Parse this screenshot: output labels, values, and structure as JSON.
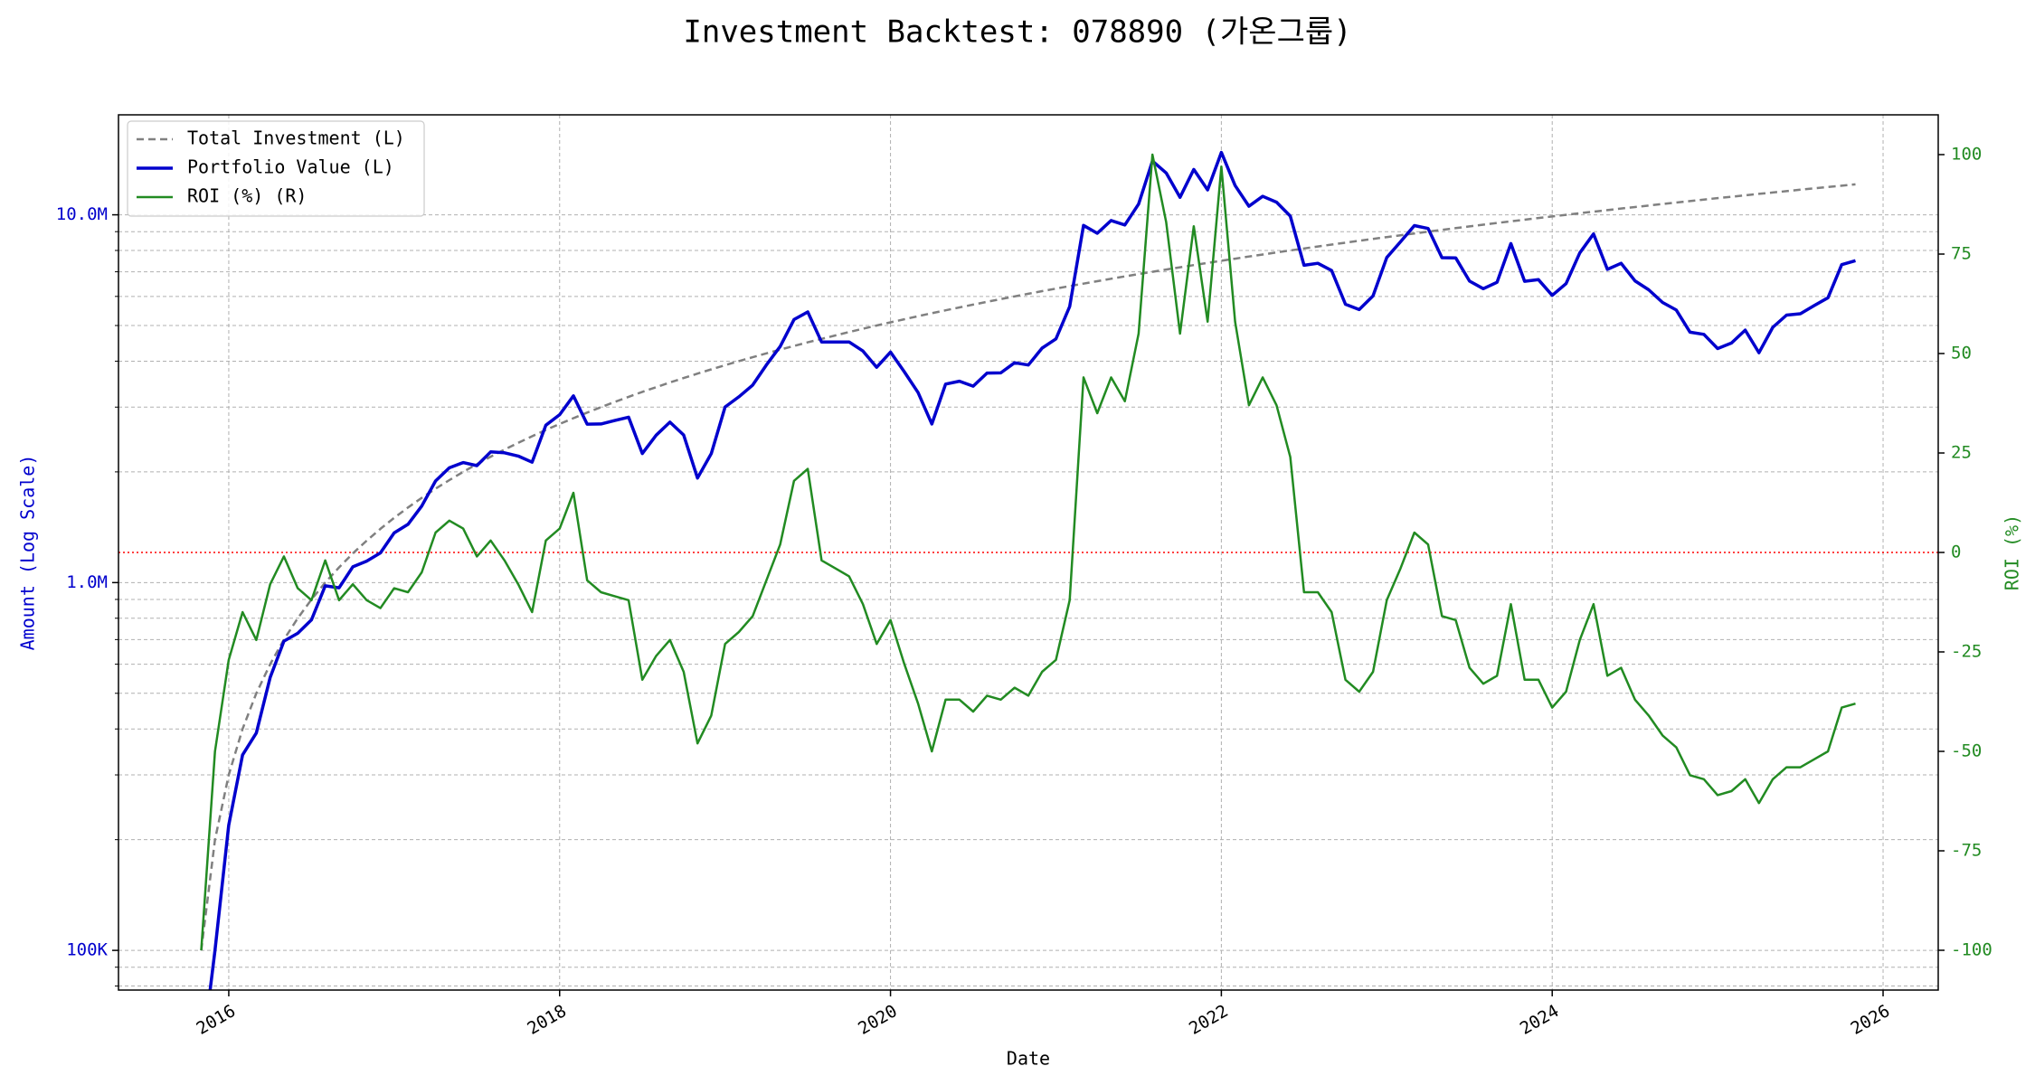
{
  "chart_data": {
    "type": "line",
    "title": "Investment Backtest: 078890 (가온그룹)",
    "xlabel": "Date",
    "ylabel": "Amount (Log Scale)",
    "y2label": "ROI (%)",
    "log_y": true,
    "grid": true,
    "legend": "upper left",
    "ylabel_color": "#0000cd",
    "y2label_color": "#228b22",
    "zero_line": {
      "axis": "y2",
      "value": 0,
      "color": "#ff0000"
    },
    "xlim": [
      "2015-05",
      "2026-05"
    ],
    "xticks": [
      {
        "value": "2016-01",
        "label": "2016"
      },
      {
        "value": "2018-01",
        "label": "2018"
      },
      {
        "value": "2020-01",
        "label": "2020"
      },
      {
        "value": "2022-01",
        "label": "2022"
      },
      {
        "value": "2024-01",
        "label": "2024"
      },
      {
        "value": "2026-01",
        "label": "2026"
      }
    ],
    "ylim": [
      78000,
      18700000
    ],
    "yticks": [
      {
        "value": 100000,
        "label": "100K"
      },
      {
        "value": 1000000,
        "label": "1.0M"
      },
      {
        "value": 10000000,
        "label": "10.0M"
      }
    ],
    "yminorticks": [
      80000,
      90000,
      200000,
      300000,
      400000,
      500000,
      600000,
      700000,
      800000,
      900000,
      2000000,
      3000000,
      4000000,
      5000000,
      6000000,
      7000000,
      8000000,
      9000000
    ],
    "y2lim": [
      -110,
      110
    ],
    "y2ticks": [
      -100,
      -75,
      -50,
      -25,
      0,
      25,
      50,
      75,
      100
    ],
    "x": [
      "2015-11",
      "2015-12",
      "2016-01",
      "2016-02",
      "2016-03",
      "2016-04",
      "2016-05",
      "2016-06",
      "2016-07",
      "2016-08",
      "2016-09",
      "2016-10",
      "2016-11",
      "2016-12",
      "2017-01",
      "2017-02",
      "2017-03",
      "2017-04",
      "2017-05",
      "2017-06",
      "2017-07",
      "2017-08",
      "2017-09",
      "2017-10",
      "2017-11",
      "2017-12",
      "2018-01",
      "2018-02",
      "2018-03",
      "2018-04",
      "2018-05",
      "2018-06",
      "2018-07",
      "2018-08",
      "2018-09",
      "2018-10",
      "2018-11",
      "2018-12",
      "2019-01",
      "2019-02",
      "2019-03",
      "2019-04",
      "2019-05",
      "2019-06",
      "2019-07",
      "2019-08",
      "2019-09",
      "2019-10",
      "2019-11",
      "2019-12",
      "2020-01",
      "2020-02",
      "2020-03",
      "2020-04",
      "2020-05",
      "2020-06",
      "2020-07",
      "2020-08",
      "2020-09",
      "2020-10",
      "2020-11",
      "2020-12",
      "2021-01",
      "2021-02",
      "2021-03",
      "2021-04",
      "2021-05",
      "2021-06",
      "2021-07",
      "2021-08",
      "2021-09",
      "2021-10",
      "2021-11",
      "2021-12",
      "2022-01",
      "2022-02",
      "2022-03",
      "2022-04",
      "2022-05",
      "2022-06",
      "2022-07",
      "2022-08",
      "2022-09",
      "2022-10",
      "2022-11",
      "2022-12",
      "2023-01",
      "2023-02",
      "2023-03",
      "2023-04",
      "2023-05",
      "2023-06",
      "2023-07",
      "2023-08",
      "2023-09",
      "2023-10",
      "2023-11",
      "2023-12",
      "2024-01",
      "2024-02",
      "2024-03",
      "2024-04",
      "2024-05",
      "2024-06",
      "2024-07",
      "2024-08",
      "2024-09",
      "2024-10",
      "2024-11",
      "2024-12",
      "2025-01",
      "2025-02",
      "2025-03",
      "2025-04",
      "2025-05",
      "2025-06",
      "2025-07",
      "2025-08",
      "2025-09",
      "2025-10",
      "2025-11"
    ],
    "series": [
      {
        "name": "Total Investment (L)",
        "color": "#808080",
        "style": "dashed",
        "width": 2.5,
        "axis": "y",
        "values": [
          100000,
          200000,
          300000,
          400000,
          500000,
          600000,
          700000,
          800000,
          900000,
          1000000,
          1100000,
          1200000,
          1300000,
          1400000,
          1500000,
          1600000,
          1700000,
          1800000,
          1900000,
          2000000,
          2100000,
          2200000,
          2300000,
          2400000,
          2500000,
          2600000,
          2700000,
          2800000,
          2900000,
          3000000,
          3100000,
          3200000,
          3300000,
          3400000,
          3500000,
          3600000,
          3700000,
          3800000,
          3900000,
          4000000,
          4100000,
          4200000,
          4300000,
          4400000,
          4500000,
          4600000,
          4700000,
          4800000,
          4900000,
          5000000,
          5100000,
          5200000,
          5300000,
          5400000,
          5500000,
          5600000,
          5700000,
          5800000,
          5900000,
          6000000,
          6100000,
          6200000,
          6300000,
          6400000,
          6500000,
          6600000,
          6700000,
          6800000,
          6900000,
          7000000,
          7100000,
          7200000,
          7300000,
          7400000,
          7500000,
          7600000,
          7700000,
          7800000,
          7900000,
          8000000,
          8100000,
          8200000,
          8300000,
          8400000,
          8500000,
          8600000,
          8700000,
          8800000,
          8900000,
          9000000,
          9100000,
          9200000,
          9300000,
          9400000,
          9500000,
          9600000,
          9700000,
          9800000,
          9900000,
          10000000,
          10100000,
          10200000,
          10300000,
          10400000,
          10500000,
          10600000,
          10700000,
          10800000,
          10900000,
          11000000,
          11100000,
          11200000,
          11300000,
          11400000,
          11500000,
          11600000,
          11700000,
          11800000,
          11900000,
          12000000,
          12100000
        ]
      },
      {
        "name": "Portfolio Value (L)",
        "color": "#0000cd",
        "style": "solid",
        "width": 3.5,
        "axis": "y",
        "values": [
          0,
          100000,
          219000,
          340000,
          390000,
          552000,
          693000,
          728000,
          792000,
          980000,
          968000,
          1104000,
          1144000,
          1204000,
          1365000,
          1440000,
          1615000,
          1890000,
          2052000,
          2120000,
          2079000,
          2266000,
          2254000,
          2208000,
          2125000,
          2678000,
          2862000,
          3220000,
          2697000,
          2700000,
          2759000,
          2816000,
          2244000,
          2516000,
          2730000,
          2520000,
          1924000,
          2242000,
          3003000,
          3200000,
          3444000,
          3906000,
          4386000,
          5192000,
          5445000,
          4508000,
          4512000,
          4512000,
          4263000,
          3850000,
          4233000,
          3744000,
          3286000,
          2700000,
          3465000,
          3528000,
          3420000,
          3712000,
          3717000,
          3960000,
          3904000,
          4340000,
          4599000,
          5632000,
          9360000,
          8910000,
          9648000,
          9384000,
          10695000,
          14000000,
          12993000,
          11160000,
          13286000,
          11692000,
          14775000,
          12008000,
          10549000,
          11232000,
          10823000,
          9920000,
          7290000,
          7380000,
          7055000,
          5712000,
          5525000,
          6020000,
          7656000,
          8448000,
          9345000,
          9180000,
          7644000,
          7636000,
          6603000,
          6298000,
          6555000,
          8352000,
          6596000,
          6664000,
          6039000,
          6500000,
          7878000,
          8874000,
          7107000,
          7384000,
          6615000,
          6254000,
          5778000,
          5508000,
          4796000,
          4730000,
          4329000,
          4480000,
          4859000,
          4218000,
          4945000,
          5336000,
          5382000,
          5664000,
          5950000,
          7320000,
          7502000
        ]
      },
      {
        "name": "ROI (%) (R)",
        "color": "#228b22",
        "style": "solid",
        "width": 2.5,
        "axis": "y2",
        "values": [
          -100,
          -50,
          -27,
          -15,
          -22,
          -8,
          -1,
          -9,
          -12,
          -2,
          -12,
          -8,
          -12,
          -14,
          -9,
          -10,
          -5,
          5,
          8,
          6,
          -1,
          3,
          -2,
          -8,
          -15,
          3,
          6,
          15,
          -7,
          -10,
          -11,
          -12,
          -32,
          -26,
          -22,
          -30,
          -48,
          -41,
          -23,
          -20,
          -16,
          -7,
          2,
          18,
          21,
          -2,
          -4,
          -6,
          -13,
          -23,
          -17,
          -28,
          -38,
          -50,
          -37,
          -37,
          -40,
          -36,
          -37,
          -34,
          -36,
          -30,
          -27,
          -12,
          44,
          35,
          44,
          38,
          55,
          100,
          83,
          55,
          82,
          58,
          97,
          58,
          37,
          44,
          37,
          24,
          -10,
          -10,
          -15,
          -32,
          -35,
          -30,
          -12,
          -4,
          5,
          2,
          -16,
          -17,
          -29,
          -33,
          -31,
          -13,
          -32,
          -32,
          -39,
          -35,
          -22,
          -13,
          -31,
          -29,
          -37,
          -41,
          -46,
          -49,
          -56,
          -57,
          -61,
          -60,
          -57,
          -63,
          -57,
          -54,
          -54,
          -52,
          -50,
          -39,
          -38
        ]
      }
    ]
  }
}
